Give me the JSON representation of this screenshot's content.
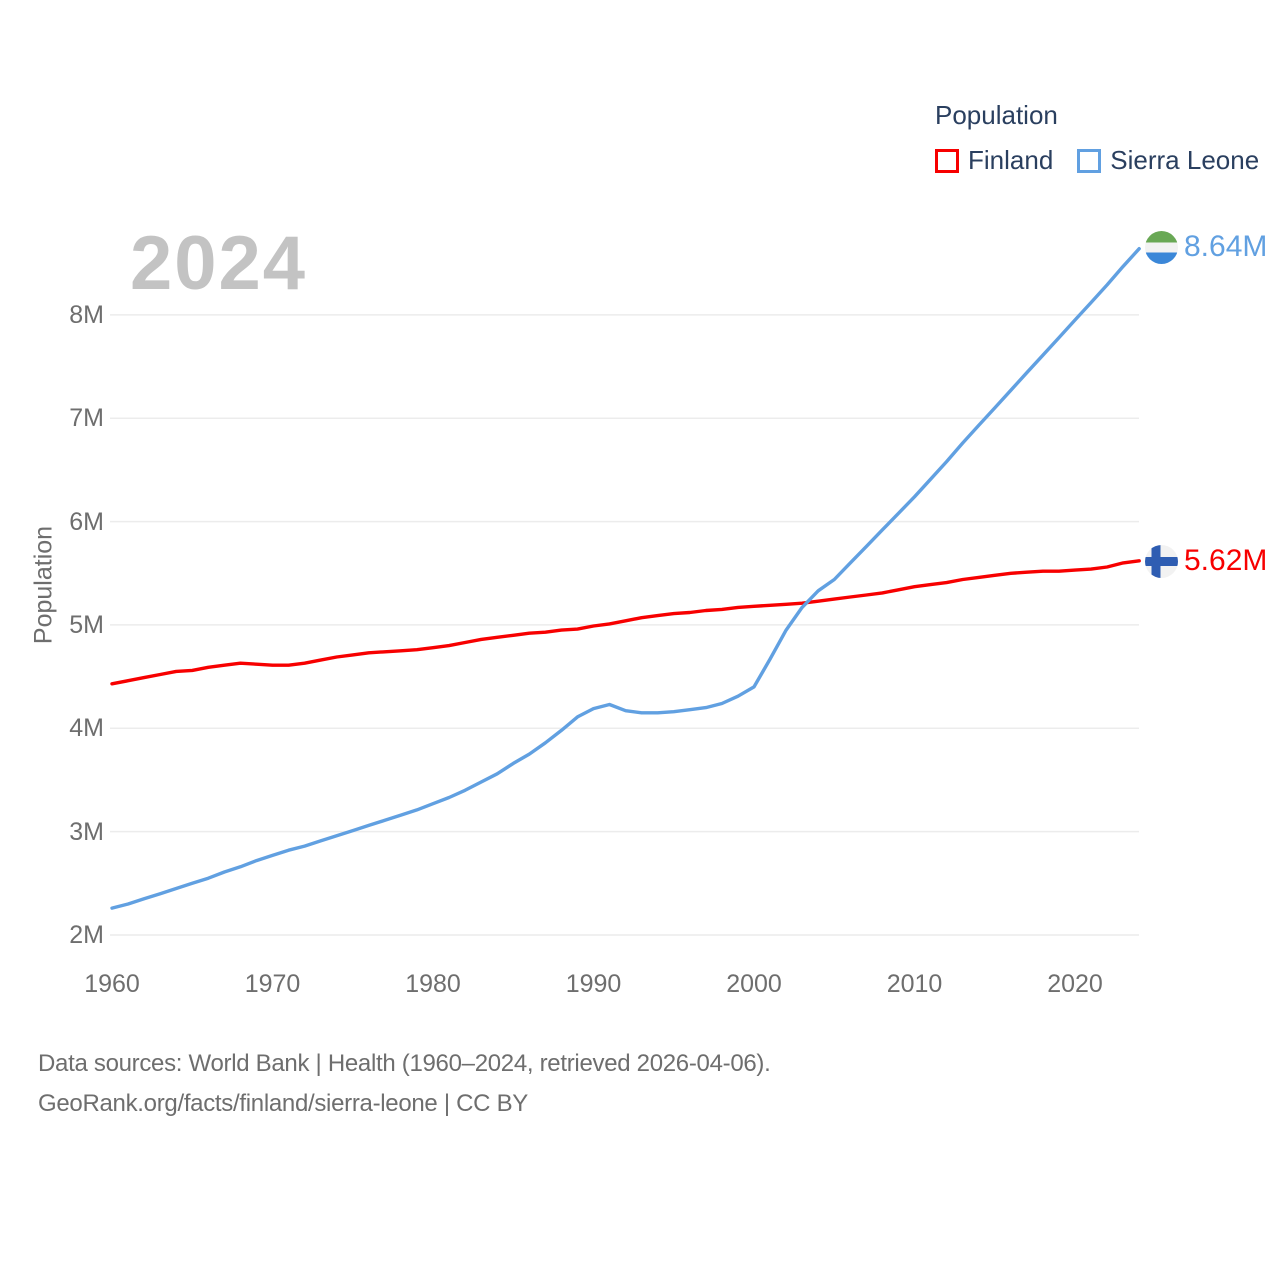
{
  "colors": {
    "finland_line": "#f70000",
    "sierra_leone_line": "#61a0e1",
    "legend_text": "#2a3f5f",
    "axis_text": "#6e6e6e",
    "watermark_text": "#c3c3c3",
    "gridline": "#ececec",
    "footer_text": "#6e6e6e",
    "sl_flag_green": "#69a855",
    "sl_flag_blue": "#3b87d8",
    "sl_flag_white": "#f2f2f2",
    "fi_flag_white": "#f2f2f2",
    "fi_flag_blue": "#2e5db2"
  },
  "watermark": "2024",
  "legend": {
    "title": "Population",
    "items": [
      {
        "label": "Finland",
        "color": "#f70000"
      },
      {
        "label": "Sierra Leone",
        "color": "#61a0e1"
      }
    ]
  },
  "y_axis": {
    "title": "Population",
    "ticks": [
      {
        "label": "2M",
        "value": 2
      },
      {
        "label": "3M",
        "value": 3
      },
      {
        "label": "4M",
        "value": 4
      },
      {
        "label": "5M",
        "value": 5
      },
      {
        "label": "6M",
        "value": 6
      },
      {
        "label": "7M",
        "value": 7
      },
      {
        "label": "8M",
        "value": 8
      }
    ]
  },
  "x_axis": {
    "ticks": [
      {
        "label": "1960",
        "value": 1960
      },
      {
        "label": "1970",
        "value": 1970
      },
      {
        "label": "1980",
        "value": 1980
      },
      {
        "label": "1990",
        "value": 1990
      },
      {
        "label": "2000",
        "value": 2000
      },
      {
        "label": "2010",
        "value": 2010
      },
      {
        "label": "2020",
        "value": 2020
      }
    ]
  },
  "end_labels": {
    "sierra_leone": "8.64M",
    "finland": "5.62M"
  },
  "footer": {
    "line1": "Data sources: World Bank | Health (1960–2024, retrieved 2026-04-06).",
    "line2": "GeoRank.org/facts/finland/sierra-leone | CC BY"
  },
  "chart_data": {
    "type": "line",
    "title": "Population",
    "watermark_year": "2024",
    "ylabel": "Population",
    "xlabel": "",
    "unit": "millions of people",
    "xlim": [
      1960,
      2024
    ],
    "ylim_millions": [
      2,
      8.8
    ],
    "grid": "horizontal-only",
    "legend_position": "top-right",
    "x": [
      1960,
      1961,
      1962,
      1963,
      1964,
      1965,
      1966,
      1967,
      1968,
      1969,
      1970,
      1971,
      1972,
      1973,
      1974,
      1975,
      1976,
      1977,
      1978,
      1979,
      1980,
      1981,
      1982,
      1983,
      1984,
      1985,
      1986,
      1987,
      1988,
      1989,
      1990,
      1991,
      1992,
      1993,
      1994,
      1995,
      1996,
      1997,
      1998,
      1999,
      2000,
      2001,
      2002,
      2003,
      2004,
      2005,
      2006,
      2007,
      2008,
      2009,
      2010,
      2011,
      2012,
      2013,
      2014,
      2015,
      2016,
      2017,
      2018,
      2019,
      2020,
      2021,
      2022,
      2023,
      2024
    ],
    "series": [
      {
        "name": "Finland",
        "color": "#f70000",
        "end_label": "5.62M",
        "values": [
          4.43,
          4.46,
          4.49,
          4.52,
          4.55,
          4.56,
          4.59,
          4.61,
          4.63,
          4.62,
          4.61,
          4.61,
          4.63,
          4.66,
          4.69,
          4.71,
          4.73,
          4.74,
          4.75,
          4.76,
          4.78,
          4.8,
          4.83,
          4.86,
          4.88,
          4.9,
          4.92,
          4.93,
          4.95,
          4.96,
          4.99,
          5.01,
          5.04,
          5.07,
          5.09,
          5.11,
          5.12,
          5.14,
          5.15,
          5.17,
          5.18,
          5.19,
          5.2,
          5.21,
          5.23,
          5.25,
          5.27,
          5.29,
          5.31,
          5.34,
          5.37,
          5.39,
          5.41,
          5.44,
          5.46,
          5.48,
          5.5,
          5.51,
          5.52,
          5.52,
          5.53,
          5.54,
          5.56,
          5.6,
          5.62
        ]
      },
      {
        "name": "Sierra Leone",
        "color": "#61a0e1",
        "end_label": "8.64M",
        "values": [
          2.26,
          2.3,
          2.35,
          2.4,
          2.45,
          2.5,
          2.55,
          2.61,
          2.66,
          2.72,
          2.77,
          2.82,
          2.86,
          2.91,
          2.96,
          3.01,
          3.06,
          3.11,
          3.16,
          3.21,
          3.27,
          3.33,
          3.4,
          3.48,
          3.56,
          3.66,
          3.75,
          3.86,
          3.98,
          4.11,
          4.19,
          4.23,
          4.17,
          4.15,
          4.15,
          4.16,
          4.18,
          4.2,
          4.24,
          4.31,
          4.4,
          4.67,
          4.95,
          5.17,
          5.33,
          5.44,
          5.6,
          5.76,
          5.92,
          6.08,
          6.24,
          6.41,
          6.58,
          6.76,
          6.93,
          7.1,
          7.27,
          7.44,
          7.61,
          7.78,
          7.95,
          8.12,
          8.29,
          8.47,
          8.64
        ]
      }
    ]
  }
}
